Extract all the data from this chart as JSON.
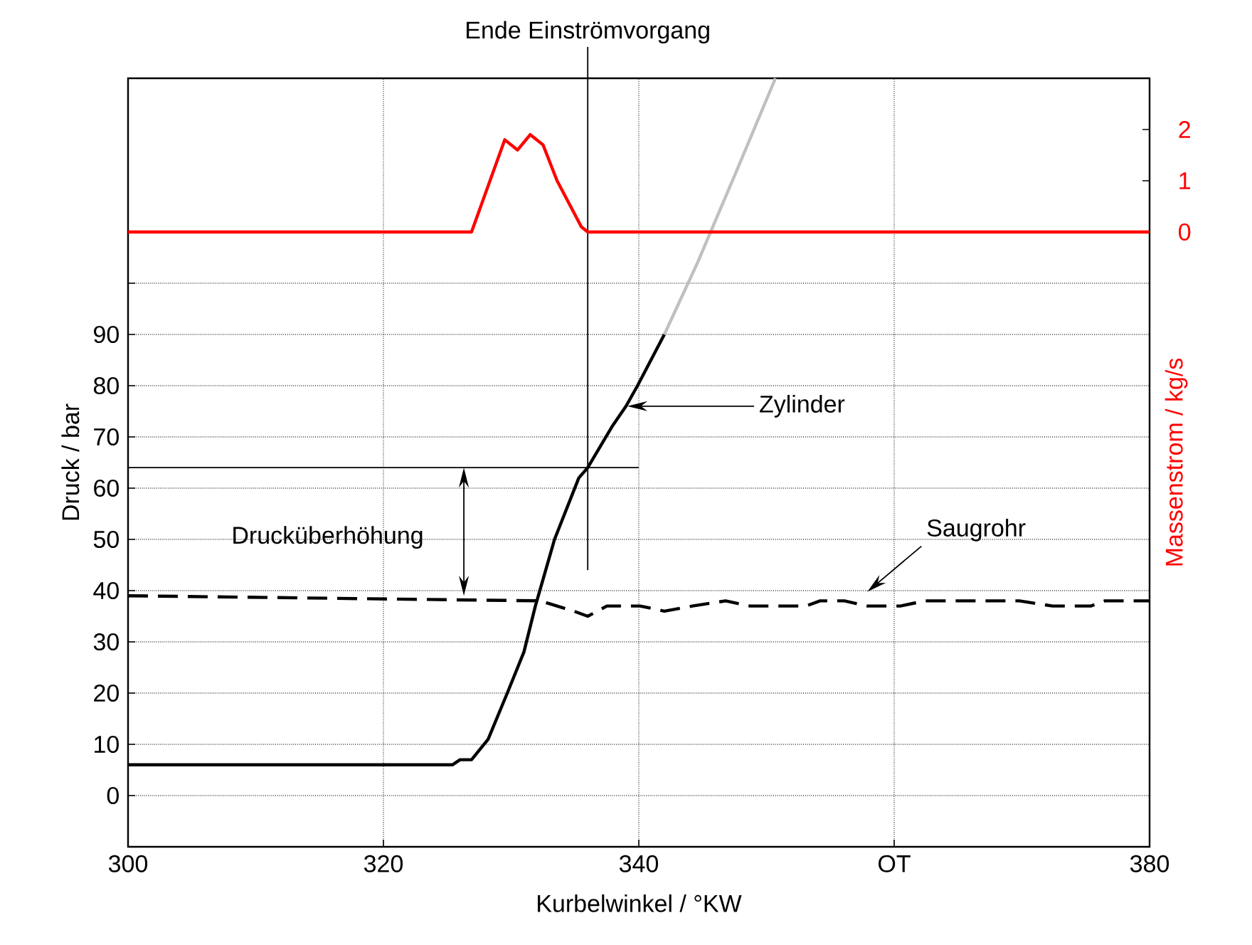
{
  "chart_data": {
    "type": "line",
    "xlabel": "Kurbelwinkel / °KW",
    "ylabel": "Druck / bar",
    "y2label": "Massenstrom / kg/s",
    "xlim": [
      300,
      380
    ],
    "xticks": [
      300,
      320,
      340,
      {
        "value": 360,
        "label": "OT"
      },
      380
    ],
    "ylim": [
      -10,
      140
    ],
    "yticks": [
      0,
      10,
      20,
      30,
      40,
      50,
      60,
      70,
      80,
      90,
      {
        "value": 100,
        "label": null
      }
    ],
    "y2lim": [
      -12,
      3
    ],
    "y2ticks": [
      0,
      1,
      2
    ],
    "grid": true,
    "marker": "none",
    "series": [
      {
        "name": "Zylinder",
        "color": "#000000",
        "line_style": "solid",
        "x": [
          300,
          325.4,
          326.0,
          326.9,
          328.2,
          329.7,
          331.0,
          331.9,
          333.4,
          335.3,
          336.0,
          337.9,
          339.0,
          339.9,
          342.0
        ],
        "values": [
          6,
          6,
          7,
          7,
          11,
          20,
          28,
          37,
          50,
          62,
          64,
          72,
          76,
          80,
          90
        ]
      },
      {
        "color": "#c0c0c0",
        "line_style": "solid",
        "x": [
          342.0,
          344.6,
          347.5,
          350.7
        ],
        "values": [
          90,
          104,
          121,
          140
        ]
      },
      {
        "name": "Saugrohr",
        "color": "#000000",
        "line_style": "dashed",
        "x": [
          300,
          332.3,
          334.9,
          336.0,
          337.5,
          340.1,
          342.0,
          344.2,
          346.8,
          348.7,
          353.1,
          354.2,
          356.1,
          357.9,
          360.5,
          362.4,
          368.0,
          369.8,
          372.4,
          375.4,
          376.5,
          380
        ],
        "values": [
          39,
          38,
          36,
          35,
          37,
          37,
          36,
          37,
          38,
          37,
          37,
          38,
          38,
          37,
          37,
          38,
          38,
          38,
          37,
          37,
          38,
          38
        ]
      },
      {
        "color": "#ff0000",
        "line_style": "solid",
        "axis": "y2",
        "x": [
          300,
          326.9,
          329.5,
          330.5,
          331.5,
          332.5,
          333.6,
          335.5,
          336.0,
          380
        ],
        "values": [
          0,
          0,
          1.8,
          1.6,
          1.9,
          1.7,
          1.0,
          0.1,
          0,
          0
        ]
      }
    ],
    "ref_lines": [
      {
        "axis": "x",
        "value": 336,
        "label": "Ende Einströmvorgang"
      },
      {
        "axis": "y",
        "value": 64
      }
    ],
    "annotations": [
      {
        "text": "Drucküberhöhung",
        "x": 326.3,
        "y": 64
      }
    ]
  }
}
